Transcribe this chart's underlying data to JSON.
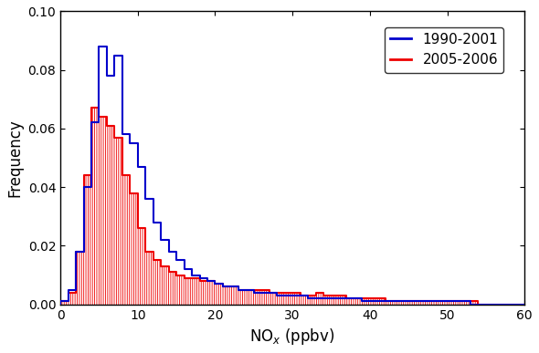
{
  "xlabel": "NO$_x$ (ppbv)",
  "ylabel": "Frequency",
  "xlim": [
    0,
    60
  ],
  "ylim": [
    0,
    0.1
  ],
  "yticks": [
    0,
    0.02,
    0.04,
    0.06,
    0.08,
    0.1
  ],
  "xticks": [
    0,
    10,
    20,
    30,
    40,
    50,
    60
  ],
  "legend_labels": [
    "1990-2001",
    "2005-2006"
  ],
  "blue_color": "#0000CC",
  "red_color": "#EE0000",
  "bin_width": 1,
  "blue_values": [
    0.001,
    0.005,
    0.018,
    0.04,
    0.062,
    0.088,
    0.078,
    0.085,
    0.058,
    0.055,
    0.047,
    0.036,
    0.028,
    0.022,
    0.018,
    0.015,
    0.012,
    0.01,
    0.009,
    0.008,
    0.007,
    0.006,
    0.006,
    0.005,
    0.005,
    0.004,
    0.004,
    0.004,
    0.003,
    0.003,
    0.003,
    0.003,
    0.002,
    0.002,
    0.002,
    0.002,
    0.002,
    0.002,
    0.002,
    0.001,
    0.001,
    0.001,
    0.001,
    0.001,
    0.001,
    0.001,
    0.001,
    0.001,
    0.001,
    0.001,
    0.001,
    0.001,
    0.001,
    0.0,
    0.0,
    0.0,
    0.0,
    0.0,
    0.0,
    0.0
  ],
  "red_values": [
    0.001,
    0.004,
    0.018,
    0.044,
    0.067,
    0.064,
    0.061,
    0.057,
    0.044,
    0.038,
    0.026,
    0.018,
    0.015,
    0.013,
    0.011,
    0.01,
    0.009,
    0.009,
    0.008,
    0.008,
    0.007,
    0.006,
    0.006,
    0.005,
    0.005,
    0.005,
    0.005,
    0.004,
    0.004,
    0.004,
    0.004,
    0.003,
    0.003,
    0.004,
    0.003,
    0.003,
    0.003,
    0.002,
    0.002,
    0.002,
    0.002,
    0.002,
    0.001,
    0.001,
    0.001,
    0.001,
    0.001,
    0.001,
    0.001,
    0.001,
    0.001,
    0.001,
    0.001,
    0.001,
    0.0,
    0.0,
    0.0,
    0.0,
    0.0,
    0.0
  ]
}
